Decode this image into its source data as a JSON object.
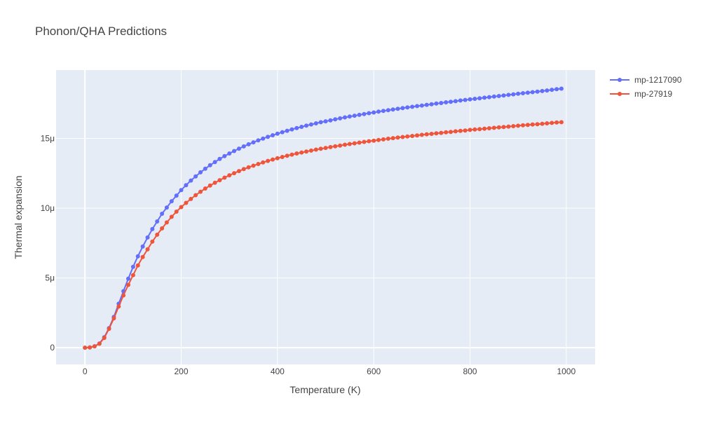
{
  "chart_data": {
    "type": "line",
    "title": "Phonon/QHA Predictions",
    "xlabel": "Temperature (K)",
    "ylabel": "Thermal expansion",
    "xlim": [
      -60,
      1060
    ],
    "ylim": [
      -1.2,
      19.9
    ],
    "x_ticks": [
      0,
      200,
      400,
      600,
      800,
      1000
    ],
    "x_tick_labels": [
      "0",
      "200",
      "400",
      "600",
      "800",
      "1000"
    ],
    "y_ticks": [
      0,
      5,
      10,
      15
    ],
    "y_tick_labels": [
      "0",
      "5μ",
      "10μ",
      "15μ"
    ],
    "y_unit": "1e-6 (μ)",
    "grid": true,
    "legend_position": "top-right",
    "series": [
      {
        "name": "mp-1217090",
        "color": "#636efa",
        "x": [
          0,
          10,
          20,
          30,
          40,
          50,
          60,
          70,
          80,
          90,
          100,
          110,
          120,
          130,
          140,
          150,
          160,
          170,
          180,
          190,
          200,
          210,
          220,
          230,
          240,
          250,
          260,
          270,
          280,
          290,
          300,
          310,
          320,
          330,
          340,
          350,
          360,
          370,
          380,
          390,
          400,
          410,
          420,
          430,
          440,
          450,
          460,
          470,
          480,
          490,
          500,
          510,
          520,
          530,
          540,
          550,
          560,
          570,
          580,
          590,
          600,
          610,
          620,
          630,
          640,
          650,
          660,
          670,
          680,
          690,
          700,
          710,
          720,
          730,
          740,
          750,
          760,
          770,
          780,
          790,
          800,
          810,
          820,
          830,
          840,
          850,
          860,
          870,
          880,
          890,
          900,
          910,
          920,
          930,
          940,
          950,
          960,
          970,
          980,
          990
        ],
        "y": [
          0,
          0.02,
          0.1,
          0.3,
          0.75,
          1.4,
          2.2,
          3.15,
          4.05,
          4.95,
          5.8,
          6.55,
          7.25,
          7.9,
          8.5,
          9.05,
          9.6,
          10.05,
          10.5,
          10.9,
          11.3,
          11.65,
          11.98,
          12.28,
          12.57,
          12.83,
          13.08,
          13.31,
          13.53,
          13.73,
          13.92,
          14.1,
          14.27,
          14.43,
          14.58,
          14.72,
          14.86,
          14.99,
          15.11,
          15.23,
          15.34,
          15.45,
          15.55,
          15.65,
          15.74,
          15.83,
          15.92,
          16,
          16.08,
          16.16,
          16.23,
          16.3,
          16.37,
          16.44,
          16.51,
          16.57,
          16.63,
          16.69,
          16.75,
          16.81,
          16.86,
          16.92,
          16.97,
          17.02,
          17.07,
          17.12,
          17.17,
          17.22,
          17.27,
          17.32,
          17.36,
          17.41,
          17.45,
          17.5,
          17.54,
          17.59,
          17.63,
          17.67,
          17.72,
          17.76,
          17.8,
          17.84,
          17.88,
          17.92,
          17.96,
          18,
          18.04,
          18.08,
          18.12,
          18.16,
          18.2,
          18.24,
          18.28,
          18.32,
          18.36,
          18.4,
          18.44,
          18.49,
          18.53,
          18.57
        ]
      },
      {
        "name": "mp-27919",
        "color": "#ef553b",
        "x": [
          0,
          10,
          20,
          30,
          40,
          50,
          60,
          70,
          80,
          90,
          100,
          110,
          120,
          130,
          140,
          150,
          160,
          170,
          180,
          190,
          200,
          210,
          220,
          230,
          240,
          250,
          260,
          270,
          280,
          290,
          300,
          310,
          320,
          330,
          340,
          350,
          360,
          370,
          380,
          390,
          400,
          410,
          420,
          430,
          440,
          450,
          460,
          470,
          480,
          490,
          500,
          510,
          520,
          530,
          540,
          550,
          560,
          570,
          580,
          590,
          600,
          610,
          620,
          630,
          640,
          650,
          660,
          670,
          680,
          690,
          700,
          710,
          720,
          730,
          740,
          750,
          760,
          770,
          780,
          790,
          800,
          810,
          820,
          830,
          840,
          850,
          860,
          870,
          880,
          890,
          900,
          910,
          920,
          930,
          940,
          950,
          960,
          970,
          980,
          990
        ],
        "y": [
          0,
          0.02,
          0.1,
          0.28,
          0.7,
          1.35,
          2.1,
          2.95,
          3.75,
          4.5,
          5.2,
          5.9,
          6.5,
          7.05,
          7.6,
          8.1,
          8.55,
          8.98,
          9.38,
          9.75,
          10.08,
          10.38,
          10.66,
          10.93,
          11.18,
          11.41,
          11.62,
          11.82,
          12.01,
          12.19,
          12.36,
          12.51,
          12.66,
          12.8,
          12.93,
          13.05,
          13.17,
          13.28,
          13.39,
          13.49,
          13.58,
          13.67,
          13.76,
          13.84,
          13.92,
          13.99,
          14.06,
          14.13,
          14.2,
          14.26,
          14.32,
          14.38,
          14.44,
          14.49,
          14.55,
          14.6,
          14.65,
          14.7,
          14.75,
          14.8,
          14.84,
          14.89,
          14.93,
          14.98,
          15.02,
          15.06,
          15.1,
          15.14,
          15.18,
          15.22,
          15.26,
          15.3,
          15.33,
          15.37,
          15.4,
          15.44,
          15.47,
          15.51,
          15.54,
          15.57,
          15.61,
          15.64,
          15.67,
          15.7,
          15.73,
          15.76,
          15.79,
          15.82,
          15.85,
          15.88,
          15.91,
          15.94,
          15.97,
          16,
          16.02,
          16.05,
          16.08,
          16.11,
          16.14,
          16.16
        ]
      }
    ]
  }
}
